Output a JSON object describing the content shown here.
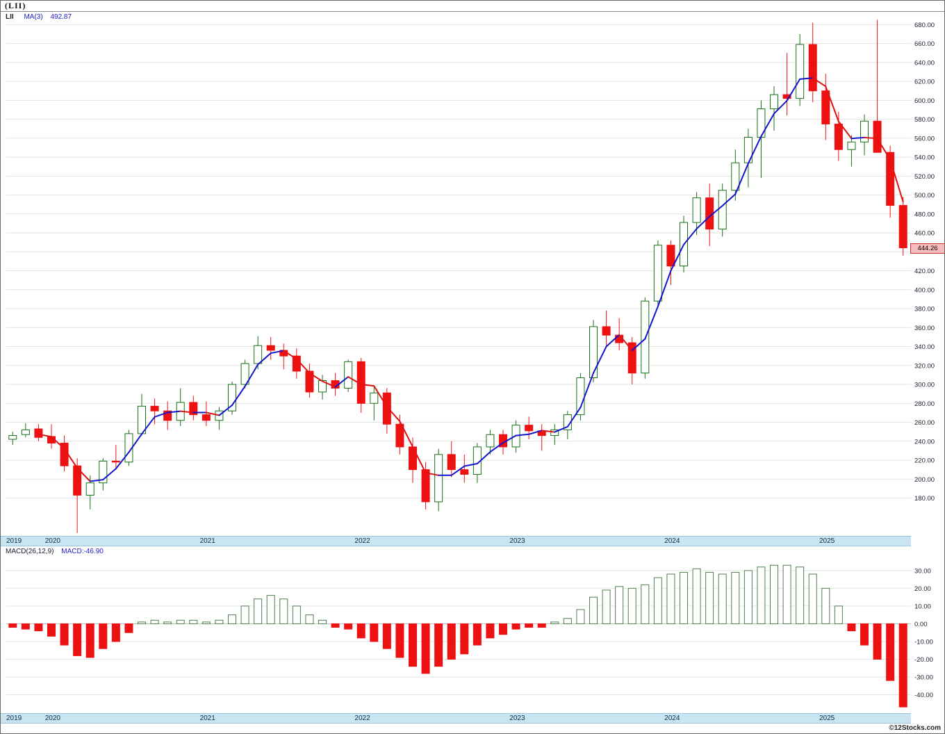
{
  "window": {
    "title": "(LII)"
  },
  "main_chart": {
    "legend": {
      "symbol": "LII",
      "ma_label": "MA(3)",
      "ma_value": "492.87"
    },
    "price_tag": "444.26"
  },
  "macd_panel": {
    "legend_left": "MACD(26,12,9)",
    "legend_right": "MACD:-46.90"
  },
  "footer": {
    "credit": "©12Stocks.com"
  },
  "chart_data": {
    "type": "candlestick",
    "symbol": "LII",
    "title": "(LII)",
    "x_years": [
      {
        "label": "2019",
        "index": 0
      },
      {
        "label": "2020",
        "index": 3
      },
      {
        "label": "2021",
        "index": 15
      },
      {
        "label": "2022",
        "index": 27
      },
      {
        "label": "2023",
        "index": 39
      },
      {
        "label": "2024",
        "index": 51
      },
      {
        "label": "2025",
        "index": 63
      }
    ],
    "price_panel": {
      "ylim": [
        140,
        692
      ],
      "yticks": [
        680,
        660,
        640,
        620,
        600,
        580,
        560,
        540,
        520,
        500,
        480,
        460,
        440,
        420,
        400,
        380,
        360,
        340,
        320,
        300,
        280,
        260,
        240,
        220,
        200,
        180
      ],
      "last_price": 444.26,
      "ma_period": 3,
      "ma_last_value": 492.87,
      "grid": true,
      "candles": [
        [
          242,
          250,
          236,
          246
        ],
        [
          247,
          259,
          244,
          252
        ],
        [
          253,
          258,
          240,
          244
        ],
        [
          245,
          258,
          232,
          238
        ],
        [
          238,
          246,
          208,
          214
        ],
        [
          214,
          222,
          143,
          183
        ],
        [
          183,
          204,
          168,
          196
        ],
        [
          196,
          222,
          188,
          219
        ],
        [
          219,
          236,
          210,
          218
        ],
        [
          218,
          252,
          214,
          248
        ],
        [
          248,
          290,
          246,
          277
        ],
        [
          277,
          285,
          258,
          272
        ],
        [
          272,
          282,
          252,
          262
        ],
        [
          262,
          296,
          256,
          281
        ],
        [
          281,
          288,
          262,
          268
        ],
        [
          268,
          282,
          256,
          262
        ],
        [
          262,
          276,
          252,
          272
        ],
        [
          272,
          303,
          268,
          300
        ],
        [
          300,
          326,
          296,
          322
        ],
        [
          322,
          351,
          316,
          341
        ],
        [
          341,
          350,
          326,
          336
        ],
        [
          336,
          343,
          316,
          330
        ],
        [
          330,
          338,
          306,
          314
        ],
        [
          314,
          322,
          286,
          292
        ],
        [
          292,
          310,
          284,
          304
        ],
        [
          304,
          312,
          288,
          296
        ],
        [
          296,
          326,
          292,
          324
        ],
        [
          324,
          328,
          270,
          280
        ],
        [
          280,
          298,
          262,
          291
        ],
        [
          291,
          296,
          248,
          258
        ],
        [
          258,
          268,
          226,
          234
        ],
        [
          234,
          244,
          196,
          210
        ],
        [
          210,
          218,
          168,
          176
        ],
        [
          176,
          232,
          166,
          226
        ],
        [
          226,
          240,
          202,
          210
        ],
        [
          210,
          226,
          196,
          205
        ],
        [
          205,
          238,
          196,
          234
        ],
        [
          234,
          252,
          226,
          247
        ],
        [
          247,
          252,
          226,
          234
        ],
        [
          234,
          262,
          228,
          257
        ],
        [
          257,
          266,
          242,
          251
        ],
        [
          251,
          258,
          230,
          246
        ],
        [
          246,
          258,
          236,
          252
        ],
        [
          252,
          272,
          242,
          268
        ],
        [
          268,
          312,
          262,
          307
        ],
        [
          307,
          368,
          302,
          361
        ],
        [
          361,
          378,
          340,
          352
        ],
        [
          352,
          370,
          336,
          344
        ],
        [
          344,
          350,
          300,
          312
        ],
        [
          312,
          392,
          306,
          388
        ],
        [
          388,
          452,
          382,
          447
        ],
        [
          447,
          452,
          405,
          425
        ],
        [
          425,
          478,
          418,
          471
        ],
        [
          471,
          503,
          458,
          497
        ],
        [
          497,
          512,
          446,
          464
        ],
        [
          464,
          512,
          456,
          505
        ],
        [
          505,
          548,
          494,
          534
        ],
        [
          534,
          570,
          508,
          561
        ],
        [
          561,
          600,
          518,
          591
        ],
        [
          591,
          615,
          568,
          606
        ],
        [
          606,
          650,
          584,
          602
        ],
        [
          602,
          670,
          594,
          659
        ],
        [
          659,
          682,
          598,
          610
        ],
        [
          610,
          628,
          558,
          575
        ],
        [
          575,
          588,
          536,
          548
        ],
        [
          548,
          563,
          530,
          556
        ],
        [
          556,
          585,
          542,
          578
        ],
        [
          578,
          685,
          565,
          545
        ],
        [
          545,
          552,
          476,
          489
        ],
        [
          489,
          498,
          436,
          444.26
        ]
      ]
    },
    "macd_histogram": {
      "label": "MACD(26,12,9)",
      "last_value": -46.9,
      "ylim": [
        -50,
        37
      ],
      "yticks": [
        30,
        20,
        10,
        0,
        -10,
        -20,
        -30,
        -40
      ],
      "values": [
        -2,
        -3,
        -4,
        -7,
        -12,
        -18,
        -19,
        -14,
        -10,
        -5,
        1,
        2,
        1,
        2,
        2,
        1,
        2,
        5,
        10,
        14,
        16,
        14,
        10,
        5,
        2,
        -2,
        -3,
        -8,
        -10,
        -14,
        -19,
        -24,
        -28,
        -24,
        -20,
        -17,
        -12,
        -8,
        -6,
        -3,
        -2,
        -2,
        1,
        3,
        8,
        15,
        19,
        21,
        20,
        22,
        26,
        28,
        29,
        31,
        29,
        28,
        29,
        30,
        32,
        33,
        33,
        32,
        28,
        20,
        10,
        -4,
        -12,
        -20,
        -32,
        -46.9
      ]
    },
    "colors": {
      "up": "#157015",
      "down": "#ee1111",
      "ma_up": "#1414cc",
      "ma_down": "#e01212",
      "grid": "#e2e2e2",
      "axis_text": "#1a1a2e",
      "macd_up_stroke": "#4d7d4d",
      "band_bg": "#c9e5f2",
      "tag_bg": "#f8bcbc",
      "tag_border": "#c03030",
      "legend_blue": "#1a1acc"
    }
  }
}
